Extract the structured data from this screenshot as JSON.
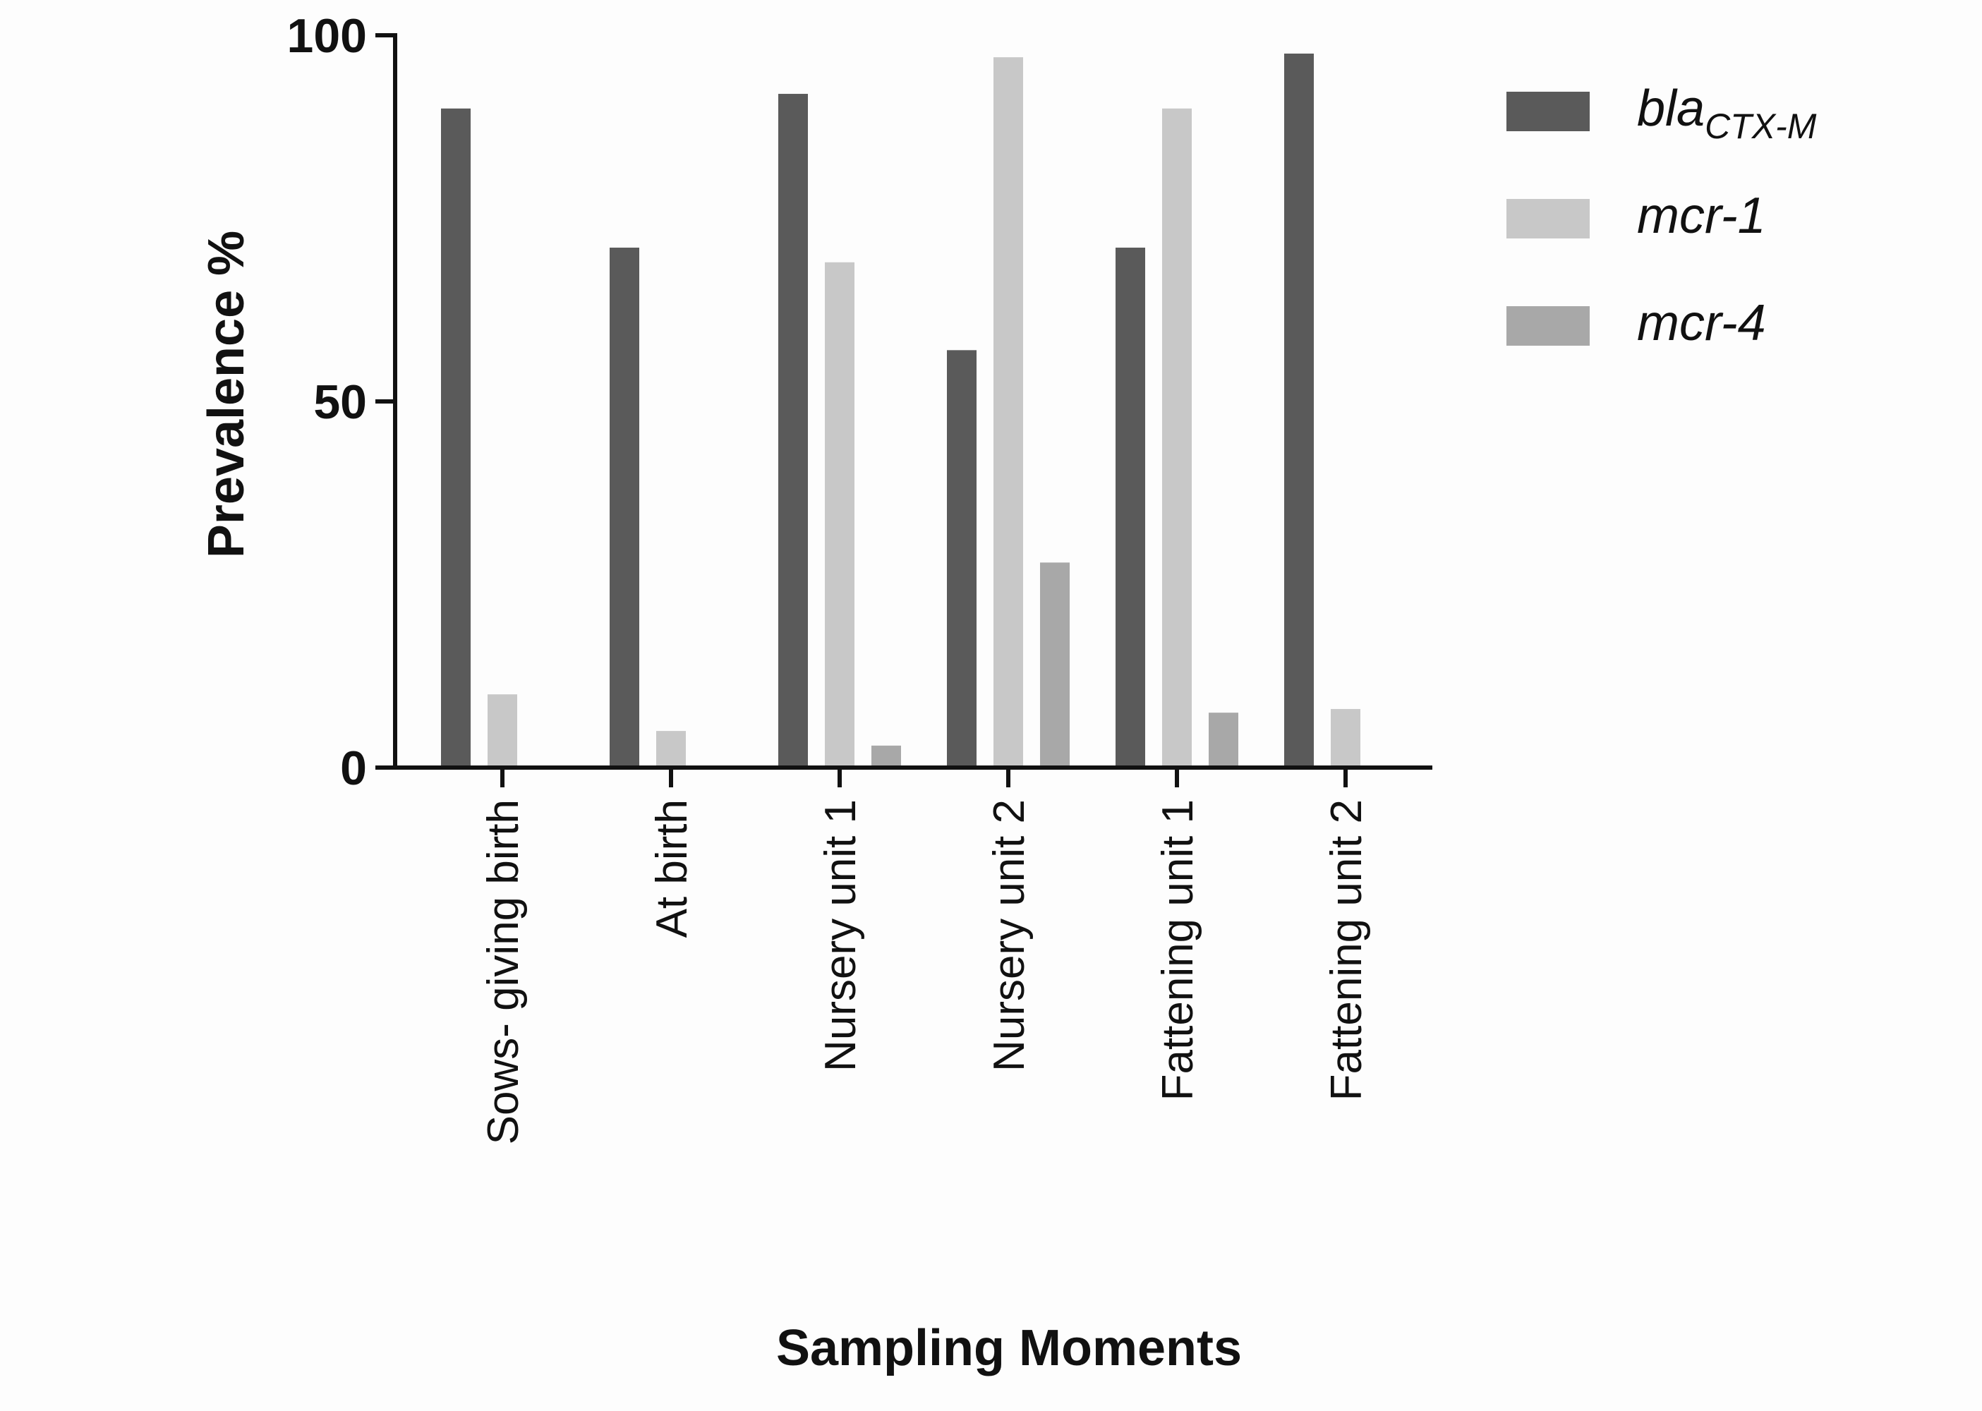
{
  "chart_data": {
    "type": "bar",
    "title": "",
    "xlabel": "Sampling Moments",
    "ylabel": "Prevalence %",
    "ylim": [
      0,
      100
    ],
    "yticks": [
      0,
      50,
      100
    ],
    "grid": false,
    "legend_position": "top-right",
    "categories": [
      "Sows- giving birth",
      "At birth",
      "Nursery unit 1",
      "Nursery unit 2",
      "Fattening unit 1",
      "Fattening unit 2"
    ],
    "series": [
      {
        "name": "bla",
        "name_subscript": "CTX-M",
        "color": "#5a5a5a",
        "values": [
          90,
          71,
          92,
          57,
          71,
          97.5
        ]
      },
      {
        "name": "mcr-1",
        "color": "#c8c8c8",
        "values": [
          10,
          5,
          69,
          97,
          90,
          8
        ]
      },
      {
        "name": "mcr-4",
        "color": "#a8a8a8",
        "values": [
          0,
          0,
          3,
          28,
          7.5,
          0
        ]
      }
    ]
  }
}
